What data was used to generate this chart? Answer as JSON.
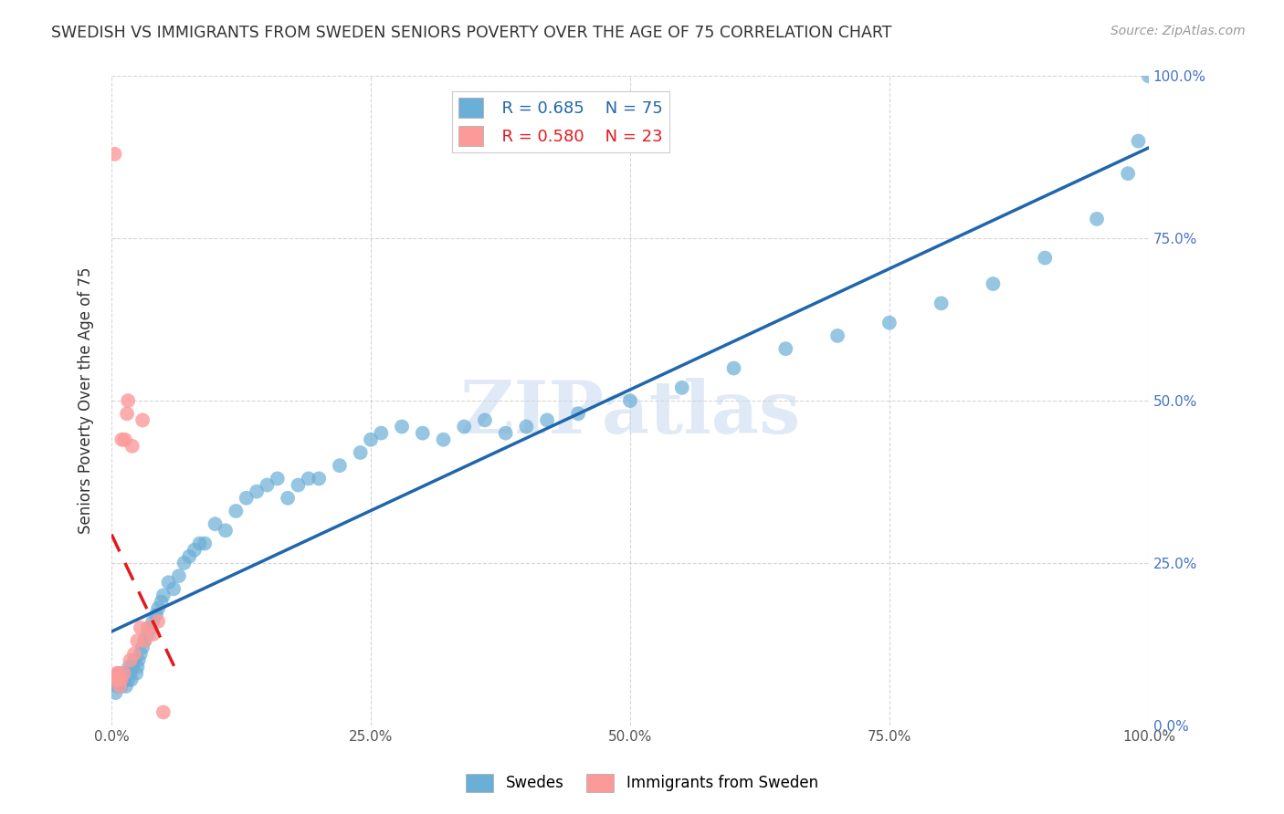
{
  "title": "SWEDISH VS IMMIGRANTS FROM SWEDEN SENIORS POVERTY OVER THE AGE OF 75 CORRELATION CHART",
  "source": "Source: ZipAtlas.com",
  "ylabel": "Seniors Poverty Over the Age of 75",
  "xlim": [
    0,
    1.0
  ],
  "ylim": [
    0,
    1.0
  ],
  "xtick_labels": [
    "0.0%",
    "25.0%",
    "50.0%",
    "75.0%",
    "100.0%"
  ],
  "xtick_positions": [
    0.0,
    0.25,
    0.5,
    0.75,
    1.0
  ],
  "ytick_positions": [
    0.0,
    0.25,
    0.5,
    0.75,
    1.0
  ],
  "right_ytick_labels": [
    "0.0%",
    "25.0%",
    "50.0%",
    "75.0%",
    "100.0%"
  ],
  "swedes_color": "#6baed6",
  "immigrants_color": "#fb9a99",
  "swedes_line_color": "#2166ac",
  "immigrants_line_color": "#e31a1c",
  "watermark_text": "ZIPatlas",
  "legend_r_swedes": "R = 0.685",
  "legend_n_swedes": "N = 75",
  "legend_r_immigrants": "R = 0.580",
  "legend_n_immigrants": "N = 23",
  "swedes_x": [
    0.004,
    0.005,
    0.006,
    0.007,
    0.008,
    0.009,
    0.01,
    0.012,
    0.013,
    0.014,
    0.015,
    0.016,
    0.017,
    0.018,
    0.019,
    0.02,
    0.022,
    0.024,
    0.025,
    0.026,
    0.028,
    0.03,
    0.032,
    0.035,
    0.038,
    0.04,
    0.043,
    0.045,
    0.048,
    0.05,
    0.055,
    0.06,
    0.065,
    0.07,
    0.075,
    0.08,
    0.085,
    0.09,
    0.1,
    0.11,
    0.12,
    0.13,
    0.14,
    0.15,
    0.16,
    0.17,
    0.18,
    0.19,
    0.2,
    0.22,
    0.24,
    0.25,
    0.26,
    0.28,
    0.3,
    0.32,
    0.34,
    0.36,
    0.38,
    0.4,
    0.42,
    0.45,
    0.5,
    0.55,
    0.6,
    0.65,
    0.7,
    0.75,
    0.8,
    0.85,
    0.9,
    0.95,
    0.98,
    0.99,
    1.0
  ],
  "swedes_y": [
    0.05,
    0.07,
    0.06,
    0.08,
    0.07,
    0.06,
    0.07,
    0.08,
    0.07,
    0.06,
    0.08,
    0.07,
    0.09,
    0.08,
    0.07,
    0.09,
    0.1,
    0.08,
    0.09,
    0.1,
    0.11,
    0.12,
    0.13,
    0.14,
    0.15,
    0.16,
    0.17,
    0.18,
    0.19,
    0.2,
    0.22,
    0.21,
    0.23,
    0.25,
    0.26,
    0.27,
    0.28,
    0.28,
    0.31,
    0.3,
    0.33,
    0.35,
    0.36,
    0.37,
    0.38,
    0.35,
    0.37,
    0.38,
    0.38,
    0.4,
    0.42,
    0.44,
    0.45,
    0.46,
    0.45,
    0.44,
    0.46,
    0.47,
    0.45,
    0.46,
    0.47,
    0.48,
    0.5,
    0.52,
    0.55,
    0.58,
    0.6,
    0.62,
    0.65,
    0.68,
    0.72,
    0.78,
    0.85,
    0.9,
    1.0
  ],
  "immigrants_x": [
    0.003,
    0.004,
    0.005,
    0.006,
    0.007,
    0.008,
    0.009,
    0.01,
    0.012,
    0.013,
    0.015,
    0.016,
    0.018,
    0.02,
    0.022,
    0.025,
    0.028,
    0.03,
    0.032,
    0.035,
    0.04,
    0.045,
    0.05
  ],
  "immigrants_y": [
    0.88,
    0.07,
    0.08,
    0.07,
    0.08,
    0.06,
    0.07,
    0.44,
    0.08,
    0.44,
    0.48,
    0.5,
    0.1,
    0.43,
    0.11,
    0.13,
    0.15,
    0.47,
    0.13,
    0.15,
    0.14,
    0.16,
    0.02
  ]
}
